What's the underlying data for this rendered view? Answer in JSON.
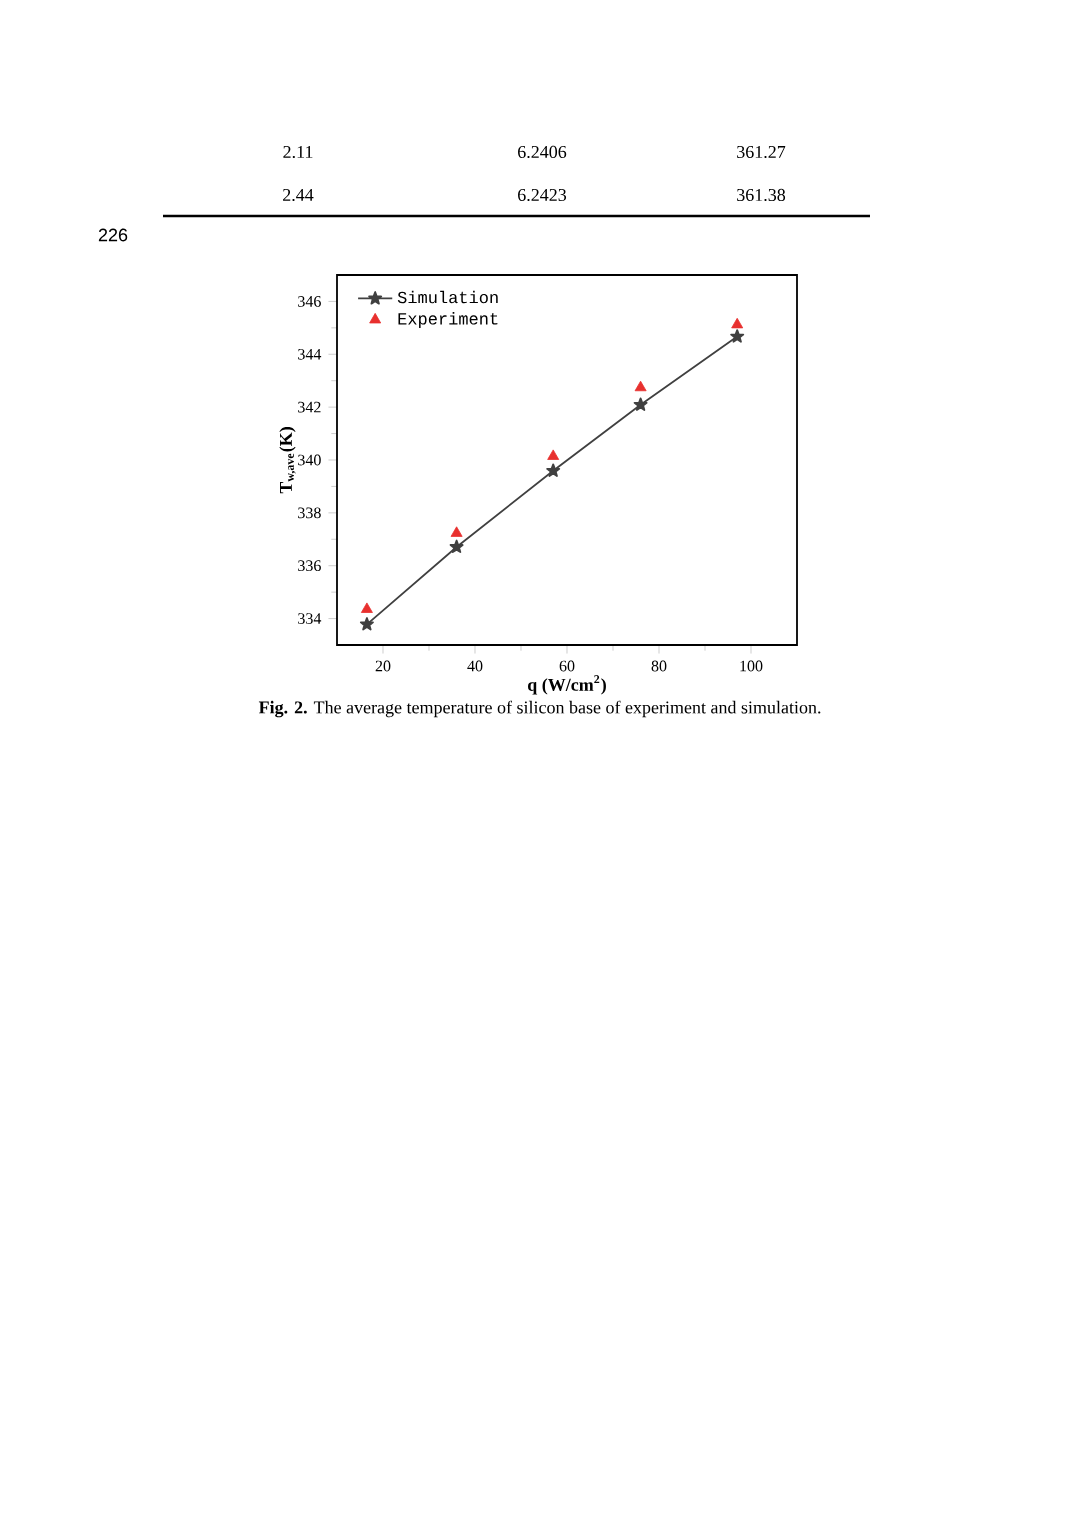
{
  "chart_data": {
    "type": "line",
    "xlabel": "q (W/cm$^{2}$)",
    "ylabel": "T$_{w,ave}$(K)",
    "x": [
      16.5,
      36,
      57,
      76,
      97
    ],
    "series": [
      {
        "name": "Simulation",
        "marker": "star",
        "color": "#404040",
        "values": [
          333.78,
          336.71,
          339.59,
          342.09,
          344.67
        ]
      },
      {
        "name": "Experiment",
        "type": "scatter",
        "marker": "triangle",
        "color": "#e8302e",
        "values": [
          334.35,
          337.23,
          340.14,
          342.74,
          345.12
        ]
      }
    ],
    "xlim": [
      10,
      110
    ],
    "ylim": [
      333,
      347
    ],
    "xticks": [
      20,
      40,
      60,
      80,
      100
    ],
    "yticks": [
      334,
      336,
      338,
      340,
      342,
      344,
      346
    ],
    "grid": false,
    "legend": "top left",
    "annotations": [
      "2.11",
      "6.2406",
      "361.27",
      "2.44",
      "6.2423",
      "361.38",
      "226",
      "**Fig. 2.** The average temperature of silicon base of experiment and simulation."
    ]
  }
}
